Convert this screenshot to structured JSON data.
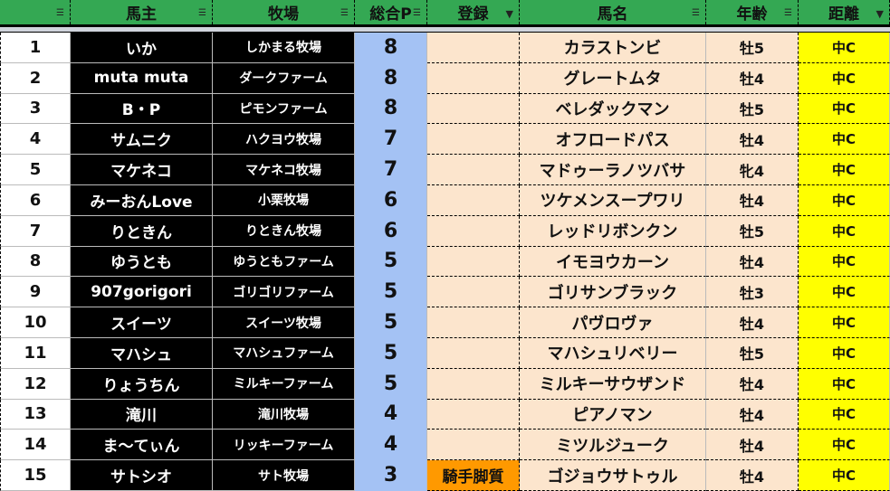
{
  "headers": [
    {
      "label": "",
      "filter": "filter-icon"
    },
    {
      "label": "馬主",
      "filter": "filter-icon"
    },
    {
      "label": "牧場",
      "filter": "filter-icon"
    },
    {
      "label": "総合P",
      "filter": "filter-icon"
    },
    {
      "label": "登録",
      "filter": "filter-active-icon"
    },
    {
      "label": "馬名",
      "filter": "filter-icon"
    },
    {
      "label": "年齢",
      "filter": "filter-icon"
    },
    {
      "label": "距離",
      "filter": "filter-active-icon"
    }
  ],
  "colors": {
    "header": "#34a853",
    "owner_bg": "#000000",
    "points_bg": "#a4c2f4",
    "horse_bg": "#fce5cd",
    "distance_bg": "#ffff00",
    "registration_highlight": "#ff9900"
  },
  "rows": [
    {
      "num": "1",
      "owner": "いか",
      "farm": "しかまる牧場",
      "points": "8",
      "reg": "",
      "horse": "カラストンビ",
      "age": "牡5",
      "dist": "中C"
    },
    {
      "num": "2",
      "owner": "muta muta",
      "farm": "ダークファーム",
      "points": "8",
      "reg": "",
      "horse": "グレートムタ",
      "age": "牡4",
      "dist": "中C"
    },
    {
      "num": "3",
      "owner": "B・P",
      "farm": "ピモンファーム",
      "points": "8",
      "reg": "",
      "horse": "ベレダックマン",
      "age": "牡5",
      "dist": "中C"
    },
    {
      "num": "4",
      "owner": "サムニク",
      "farm": "ハクヨウ牧場",
      "points": "7",
      "reg": "",
      "horse": "オフロードパス",
      "age": "牡4",
      "dist": "中C"
    },
    {
      "num": "5",
      "owner": "マケネコ",
      "farm": "マケネコ牧場",
      "points": "7",
      "reg": "",
      "horse": "マドゥーラノツバサ",
      "age": "牝4",
      "dist": "中C"
    },
    {
      "num": "6",
      "owner": "みーおんLove",
      "farm": "小栗牧場",
      "points": "6",
      "reg": "",
      "horse": "ツケメンスープワリ",
      "age": "牡4",
      "dist": "中C"
    },
    {
      "num": "7",
      "owner": "りときん",
      "farm": "りときん牧場",
      "points": "6",
      "reg": "",
      "horse": "レッドリボンクン",
      "age": "牡5",
      "dist": "中C"
    },
    {
      "num": "8",
      "owner": "ゆうとも",
      "farm": "ゆうともファーム",
      "points": "5",
      "reg": "",
      "horse": "イモヨウカーン",
      "age": "牡4",
      "dist": "中C"
    },
    {
      "num": "9",
      "owner": "907gorigori",
      "farm": "ゴリゴリファーム",
      "points": "5",
      "reg": "",
      "horse": "ゴリサンブラック",
      "age": "牡3",
      "dist": "中C"
    },
    {
      "num": "10",
      "owner": "スイーツ",
      "farm": "スイーツ牧場",
      "points": "5",
      "reg": "",
      "horse": "パヴロヴァ",
      "age": "牡4",
      "dist": "中C"
    },
    {
      "num": "11",
      "owner": "マハシュ",
      "farm": "マハシュファーム",
      "points": "5",
      "reg": "",
      "horse": "マハシュリベリー",
      "age": "牡5",
      "dist": "中C"
    },
    {
      "num": "12",
      "owner": "りょうちん",
      "farm": "ミルキーファーム",
      "points": "5",
      "reg": "",
      "horse": "ミルキーサウザンド",
      "age": "牡4",
      "dist": "中C"
    },
    {
      "num": "13",
      "owner": "滝川",
      "farm": "滝川牧場",
      "points": "4",
      "reg": "",
      "horse": "ピアノマン",
      "age": "牡4",
      "dist": "中C"
    },
    {
      "num": "14",
      "owner": "ま〜てぃん",
      "farm": "リッキーファーム",
      "points": "4",
      "reg": "",
      "horse": "ミツルジューク",
      "age": "牡4",
      "dist": "中C"
    },
    {
      "num": "15",
      "owner": "サトシオ",
      "farm": "サト牧場",
      "points": "3",
      "reg": "騎手脚質",
      "horse": "ゴジョウサトゥル",
      "age": "牡4",
      "dist": "中C"
    }
  ]
}
